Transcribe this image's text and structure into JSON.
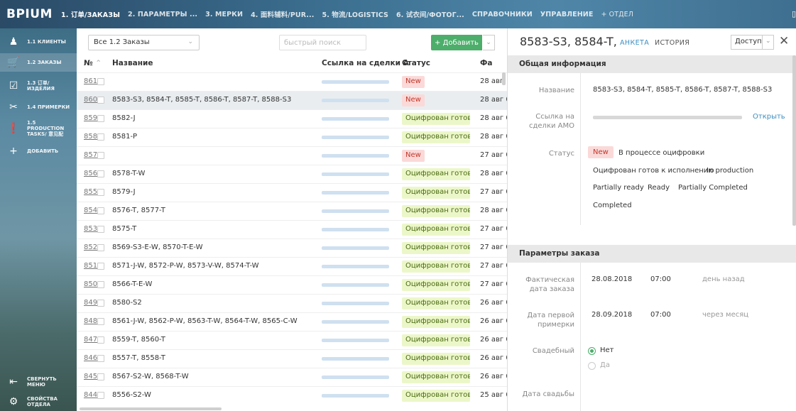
{
  "app": {
    "logo": "BPIUM"
  },
  "topnav": {
    "tabs": [
      {
        "label": "1. 订单/ЗАКАЗЫ"
      },
      {
        "label": "2. ПАРАМЕТРЫ ..."
      },
      {
        "label": "3. МЕРКИ"
      },
      {
        "label": "4. 面料辅料/PUR..."
      },
      {
        "label": "5. 物流/LOGISTICS"
      },
      {
        "label": "6. 试衣间/ФОТОГ..."
      },
      {
        "label": "СПРАВОЧНИКИ"
      },
      {
        "label": "УПРАВЛЕНИЕ"
      },
      {
        "label": "+ ОТДЕЛ"
      }
    ]
  },
  "sidebar": {
    "items": [
      {
        "icon": "user-icon",
        "label": "1.1 КЛИЕНТЫ"
      },
      {
        "icon": "cart-icon",
        "label": "1.2 ЗАКАЗЫ"
      },
      {
        "icon": "checklist-icon",
        "label": "1.3 订单/ ИЗДЕЛИЯ"
      },
      {
        "icon": "scissors-icon",
        "label": "1.4 ПРИМЕРКИ"
      },
      {
        "icon": "bulb-icon",
        "label": "1.5 PRODUCTION TASKS/ 意见配"
      },
      {
        "icon": "plus-icon",
        "label": "ДОБАВИТЬ"
      }
    ],
    "bottom": [
      {
        "icon": "collapse-icon",
        "label": "СВЕРНУТЬ МЕНЮ"
      },
      {
        "icon": "gear-icon",
        "label": "СВОЙСТВА ОТДЕЛА"
      }
    ]
  },
  "toolbar": {
    "view_select": "Все 1.2 Заказы",
    "search_placeholder": "быстрый поиск",
    "add_label": "+ Добавить"
  },
  "table": {
    "headers": {
      "num": "№",
      "name": "Название",
      "link": "Ссылка на сделки А",
      "status": "Статус",
      "date": "Фа"
    },
    "rows": [
      {
        "num": "861",
        "name": "",
        "status": "New",
        "date": "28 авг"
      },
      {
        "num": "860",
        "name": "8583-S3, 8584-T, 8585-T, 8586-T, 8587-T, 8588-S3",
        "status": "New",
        "date": "28 авг 0"
      },
      {
        "num": "859",
        "name": "8582-J",
        "status": "Оцифрован готов к и",
        "date": "28 авг 0"
      },
      {
        "num": "858",
        "name": "8581-P",
        "status": "Оцифрован готов к и",
        "date": "28 авг 0"
      },
      {
        "num": "857",
        "name": "",
        "status": "New",
        "date": "27 авг 0"
      },
      {
        "num": "856",
        "name": "8578-T-W",
        "status": "Оцифрован готов к и",
        "date": "28 авг 0"
      },
      {
        "num": "855",
        "name": "8579-J",
        "status": "Оцифрован готов к и",
        "date": "27 авг 0"
      },
      {
        "num": "854",
        "name": "8576-T, 8577-T",
        "status": "Оцифрован готов к и",
        "date": "28 авг 0"
      },
      {
        "num": "853",
        "name": "8575-T",
        "status": "Оцифрован готов к и",
        "date": "27 авг 0"
      },
      {
        "num": "852",
        "name": "8569-S3-E-W, 8570-T-E-W",
        "status": "Оцифрован готов к и",
        "date": "27 авг 0"
      },
      {
        "num": "851",
        "name": "8571-J-W, 8572-P-W, 8573-V-W, 8574-T-W",
        "status": "Оцифрован готов к и",
        "date": "27 авг 0"
      },
      {
        "num": "850",
        "name": "8566-T-E-W",
        "status": "Оцифрован готов к и",
        "date": "27 авг 0"
      },
      {
        "num": "849",
        "name": "8580-S2",
        "status": "Оцифрован готов к и",
        "date": "26 авг 0"
      },
      {
        "num": "848",
        "name": "8561-J-W, 8562-P-W, 8563-T-W, 8564-T-W, 8565-C-W",
        "status": "Оцифрован готов к и",
        "date": "26 авг 0"
      },
      {
        "num": "847",
        "name": "8559-T, 8560-T",
        "status": "Оцифрован готов к и",
        "date": "26 авг 0"
      },
      {
        "num": "846",
        "name": "8557-T, 8558-T",
        "status": "Оцифрован готов к и",
        "date": "26 авг 0"
      },
      {
        "num": "845",
        "name": "8567-S2-W, 8568-T-W",
        "status": "Оцифрован готов к и",
        "date": "26 авг 0"
      },
      {
        "num": "844",
        "name": "8556-S2-W",
        "status": "Оцифрован готов к и",
        "date": "25 авг 0"
      }
    ]
  },
  "panel": {
    "title": "8583-S3, 8584-T,",
    "tabs": {
      "anketa": "АНКЕТА",
      "history": "ИСТОРИЯ"
    },
    "access": "Доступ",
    "general": {
      "header": "Общая информация",
      "name_label": "Название",
      "name_value": "8583-S3, 8584-T, 8585-T, 8586-T, 8587-T, 8588-S3",
      "link_label": "Ссылка на сделки АМО",
      "open_label": "Открыть",
      "status_label": "Статус",
      "statuses": [
        "New",
        "В процессе оцифровки",
        "Оцифрован готов к исполнению",
        "In production",
        "Partially ready",
        "Ready",
        "Partially Completed",
        "Completed"
      ]
    },
    "params": {
      "header": "Параметры заказа",
      "order_date_label": "Фактическая дата заказа",
      "order_date": "28.08.2018",
      "order_time": "07:00",
      "order_rel": "день назад",
      "fitting_label": "Дата первой примерки",
      "fitting_date": "28.09.2018",
      "fitting_time": "07:00",
      "fitting_rel": "через месяц",
      "wedding_label": "Свадебный",
      "no": "Нет",
      "yes": "Да",
      "wedding_date_label": "Дата свадьбы"
    }
  }
}
